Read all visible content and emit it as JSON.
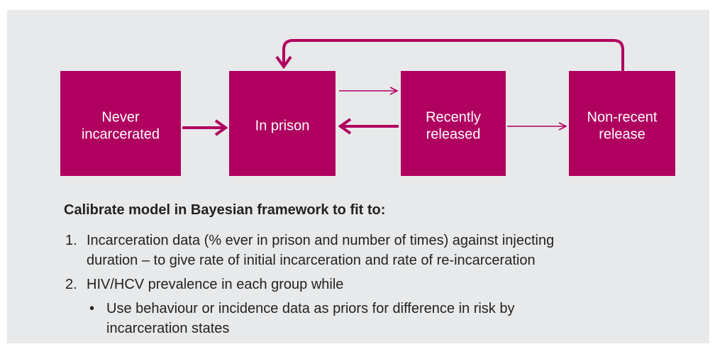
{
  "nodes": [
    {
      "lines": [
        "Never",
        "incarcerated"
      ]
    },
    {
      "lines": [
        "In prison"
      ]
    },
    {
      "lines": [
        "Recently",
        "released"
      ]
    },
    {
      "lines": [
        "Non-recent",
        "release"
      ]
    }
  ],
  "text": {
    "heading": "Calibrate model in Bayesian framework to fit to:",
    "items": [
      {
        "number": "1.",
        "lines": [
          "Incarceration data (% ever in prison and number of times) against injecting",
          "duration – to give rate of initial incarceration and rate of re-incarceration"
        ]
      },
      {
        "number": "2.",
        "lines": [
          "HIV/HCV prevalence in each group while"
        ],
        "bullets": [
          {
            "lines": [
              "Use behaviour or incidence data as priors for difference in risk by",
              "incarceration states"
            ]
          }
        ]
      }
    ]
  }
}
